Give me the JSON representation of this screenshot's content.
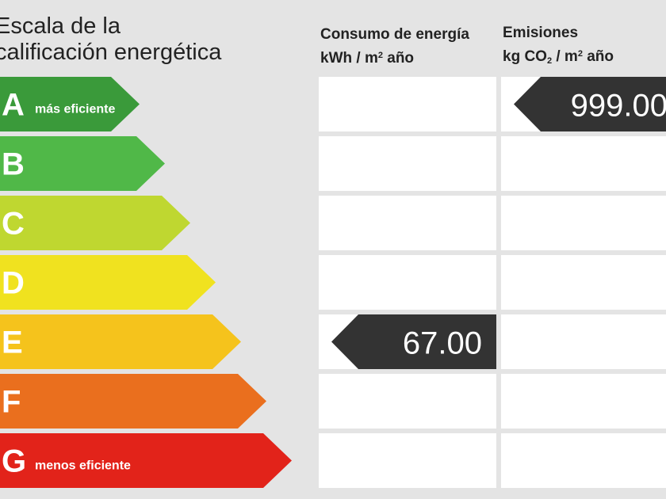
{
  "header": {
    "title_line1": "Escala de la",
    "title_line2": "calificación energética",
    "consumo_title": "Consumo de energía",
    "consumo_unit_pre": "kWh / m",
    "consumo_unit_sup": "2",
    "consumo_unit_post": " año",
    "emisiones_title": "Emisiones",
    "emisiones_unit_pre": "kg CO",
    "emisiones_unit_sub": "2",
    "emisiones_unit_mid": " / m",
    "emisiones_unit_sup": "2",
    "emisiones_unit_post": " año"
  },
  "chart_data": {
    "type": "table",
    "grades": [
      {
        "letter": "A",
        "label": "más eficiente",
        "color": "#3a9a3a"
      },
      {
        "letter": "B",
        "label": "",
        "color": "#50b848"
      },
      {
        "letter": "C",
        "label": "",
        "color": "#bfd730"
      },
      {
        "letter": "D",
        "label": "",
        "color": "#f0e21f"
      },
      {
        "letter": "E",
        "label": "",
        "color": "#f5c31c"
      },
      {
        "letter": "F",
        "label": "",
        "color": "#ea6f1e"
      },
      {
        "letter": "G",
        "label": "menos eficiente",
        "color": "#e2231a"
      }
    ],
    "consumo": {
      "grade": "E",
      "value": "67.00"
    },
    "emisiones": {
      "grade": "A",
      "value": "999.00"
    },
    "marker_color": "#333333"
  }
}
